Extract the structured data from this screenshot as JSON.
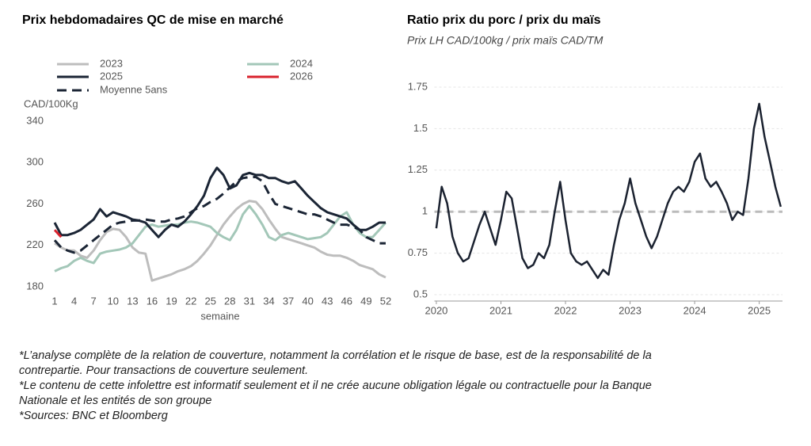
{
  "chart_data": [
    {
      "type": "line",
      "title": "Prix hebdomadaires QC de mise en marché",
      "y_label": "CAD/100Kg",
      "x_label": "semaine",
      "x": [
        1,
        2,
        3,
        4,
        5,
        6,
        7,
        8,
        9,
        10,
        11,
        12,
        13,
        14,
        15,
        16,
        17,
        18,
        19,
        20,
        21,
        22,
        23,
        24,
        25,
        26,
        27,
        28,
        29,
        30,
        31,
        32,
        33,
        34,
        35,
        36,
        37,
        38,
        39,
        40,
        41,
        42,
        43,
        44,
        45,
        46,
        47,
        48,
        49,
        50,
        51,
        52
      ],
      "xlim": [
        1,
        52
      ],
      "xticks": [
        1,
        4,
        7,
        10,
        13,
        16,
        19,
        22,
        25,
        28,
        31,
        34,
        37,
        40,
        43,
        46,
        49,
        52
      ],
      "ylim": [
        180,
        340
      ],
      "yticks": [
        180,
        220,
        260,
        300,
        340
      ],
      "series": [
        {
          "name": "2023",
          "color": "#bdbdbd",
          "values": [
            222,
            218,
            215,
            215,
            210,
            208,
            215,
            225,
            233,
            236,
            235,
            228,
            218,
            213,
            212,
            186,
            188,
            190,
            192,
            195,
            197,
            200,
            205,
            212,
            220,
            230,
            240,
            248,
            255,
            260,
            263,
            262,
            255,
            245,
            236,
            228,
            226,
            224,
            222,
            220,
            218,
            214,
            211,
            210,
            210,
            208,
            205,
            201,
            199,
            197,
            192,
            189
          ]
        },
        {
          "name": "2024",
          "color": "#a3c7b8",
          "values": [
            195,
            198,
            200,
            205,
            208,
            205,
            203,
            212,
            214,
            215,
            216,
            218,
            222,
            230,
            238,
            240,
            238,
            239,
            240,
            240,
            242,
            243,
            242,
            240,
            238,
            232,
            228,
            225,
            235,
            250,
            258,
            250,
            240,
            228,
            225,
            230,
            232,
            230,
            228,
            226,
            227,
            228,
            232,
            240,
            248,
            252,
            240,
            232,
            228,
            228,
            235,
            242
          ]
        },
        {
          "name": "2025",
          "color": "#1b2535",
          "values": [
            242,
            230,
            230,
            232,
            235,
            240,
            245,
            255,
            248,
            252,
            250,
            248,
            245,
            244,
            242,
            235,
            228,
            235,
            240,
            238,
            243,
            250,
            258,
            268,
            285,
            295,
            288,
            275,
            278,
            288,
            290,
            288,
            288,
            285,
            285,
            282,
            280,
            282,
            275,
            268,
            262,
            256,
            252,
            250,
            248,
            246,
            240,
            235,
            235,
            238,
            242,
            242
          ]
        },
        {
          "name": "2026",
          "color": "#d9232d",
          "values": [
            235,
            228,
            null,
            null,
            null,
            null,
            null,
            null,
            null,
            null,
            null,
            null,
            null,
            null,
            null,
            null,
            null,
            null,
            null,
            null,
            null,
            null,
            null,
            null,
            null,
            null,
            null,
            null,
            null,
            null,
            null,
            null,
            null,
            null,
            null,
            null,
            null,
            null,
            null,
            null,
            null,
            null,
            null,
            null,
            null,
            null,
            null,
            null,
            null,
            null,
            null,
            null
          ]
        },
        {
          "name": "Moyenne 5ans",
          "color": "#1b2535",
          "dashed": true,
          "values": [
            225,
            218,
            215,
            213,
            215,
            220,
            225,
            230,
            235,
            240,
            242,
            243,
            244,
            244,
            245,
            244,
            243,
            243,
            245,
            246,
            248,
            252,
            256,
            258,
            262,
            265,
            270,
            276,
            282,
            285,
            286,
            286,
            282,
            270,
            260,
            258,
            256,
            254,
            252,
            250,
            250,
            248,
            245,
            242,
            240,
            240,
            238,
            235,
            228,
            225,
            222,
            222
          ]
        }
      ]
    },
    {
      "type": "line",
      "title": "Ratio prix du porc / prix du maïs",
      "subtitle": "Prix LH CAD/100kg / prix maïs CAD/TM",
      "x": [
        2020,
        2020.083,
        2020.167,
        2020.25,
        2020.333,
        2020.417,
        2020.5,
        2020.583,
        2020.667,
        2020.75,
        2020.833,
        2020.917,
        2021,
        2021.083,
        2021.167,
        2021.25,
        2021.333,
        2021.417,
        2021.5,
        2021.583,
        2021.667,
        2021.75,
        2021.833,
        2021.917,
        2022,
        2022.083,
        2022.167,
        2022.25,
        2022.333,
        2022.417,
        2022.5,
        2022.583,
        2022.667,
        2022.75,
        2022.833,
        2022.917,
        2023,
        2023.083,
        2023.167,
        2023.25,
        2023.333,
        2023.417,
        2023.5,
        2023.583,
        2023.667,
        2023.75,
        2023.833,
        2023.917,
        2024,
        2024.083,
        2024.167,
        2024.25,
        2024.333,
        2024.417,
        2024.5,
        2024.583,
        2024.667,
        2024.75,
        2024.833,
        2024.917,
        2025,
        2025.083,
        2025.167,
        2025.25,
        2025.333
      ],
      "xlim": [
        2019.97,
        2025.36
      ],
      "xticks": [
        2020,
        2021,
        2022,
        2023,
        2024,
        2025
      ],
      "ylim": [
        0.5,
        1.75
      ],
      "yticks": [
        0.5,
        0.75,
        1,
        1.25,
        1.5,
        1.75
      ],
      "grid": true,
      "reference_line": 1,
      "series": [
        {
          "color": "#1b2230",
          "values": [
            0.9,
            1.15,
            1.05,
            0.85,
            0.75,
            0.7,
            0.72,
            0.82,
            0.92,
            1.0,
            0.9,
            0.8,
            0.95,
            1.12,
            1.08,
            0.9,
            0.72,
            0.66,
            0.68,
            0.75,
            0.72,
            0.8,
            1.0,
            1.18,
            0.95,
            0.75,
            0.7,
            0.68,
            0.7,
            0.65,
            0.6,
            0.65,
            0.62,
            0.8,
            0.95,
            1.05,
            1.2,
            1.05,
            0.95,
            0.85,
            0.78,
            0.85,
            0.95,
            1.05,
            1.12,
            1.15,
            1.12,
            1.18,
            1.3,
            1.35,
            1.2,
            1.15,
            1.18,
            1.12,
            1.05,
            0.95,
            1.0,
            0.98,
            1.2,
            1.5,
            1.65,
            1.45,
            1.3,
            1.15,
            1.03
          ]
        }
      ]
    }
  ],
  "footnotes": [
    "*L’analyse complète de la relation de couverture, notamment la corrélation et le risque de base, est de la responsabilité de la contrepartie. Pour transactions de couverture seulement.",
    "*Le contenu de cette infolettre est informatif seulement et il ne crée aucune obligation légale ou contractuelle pour la Banque Nationale et les entités de son groupe",
    "*Sources: BNC et Bloomberg"
  ]
}
